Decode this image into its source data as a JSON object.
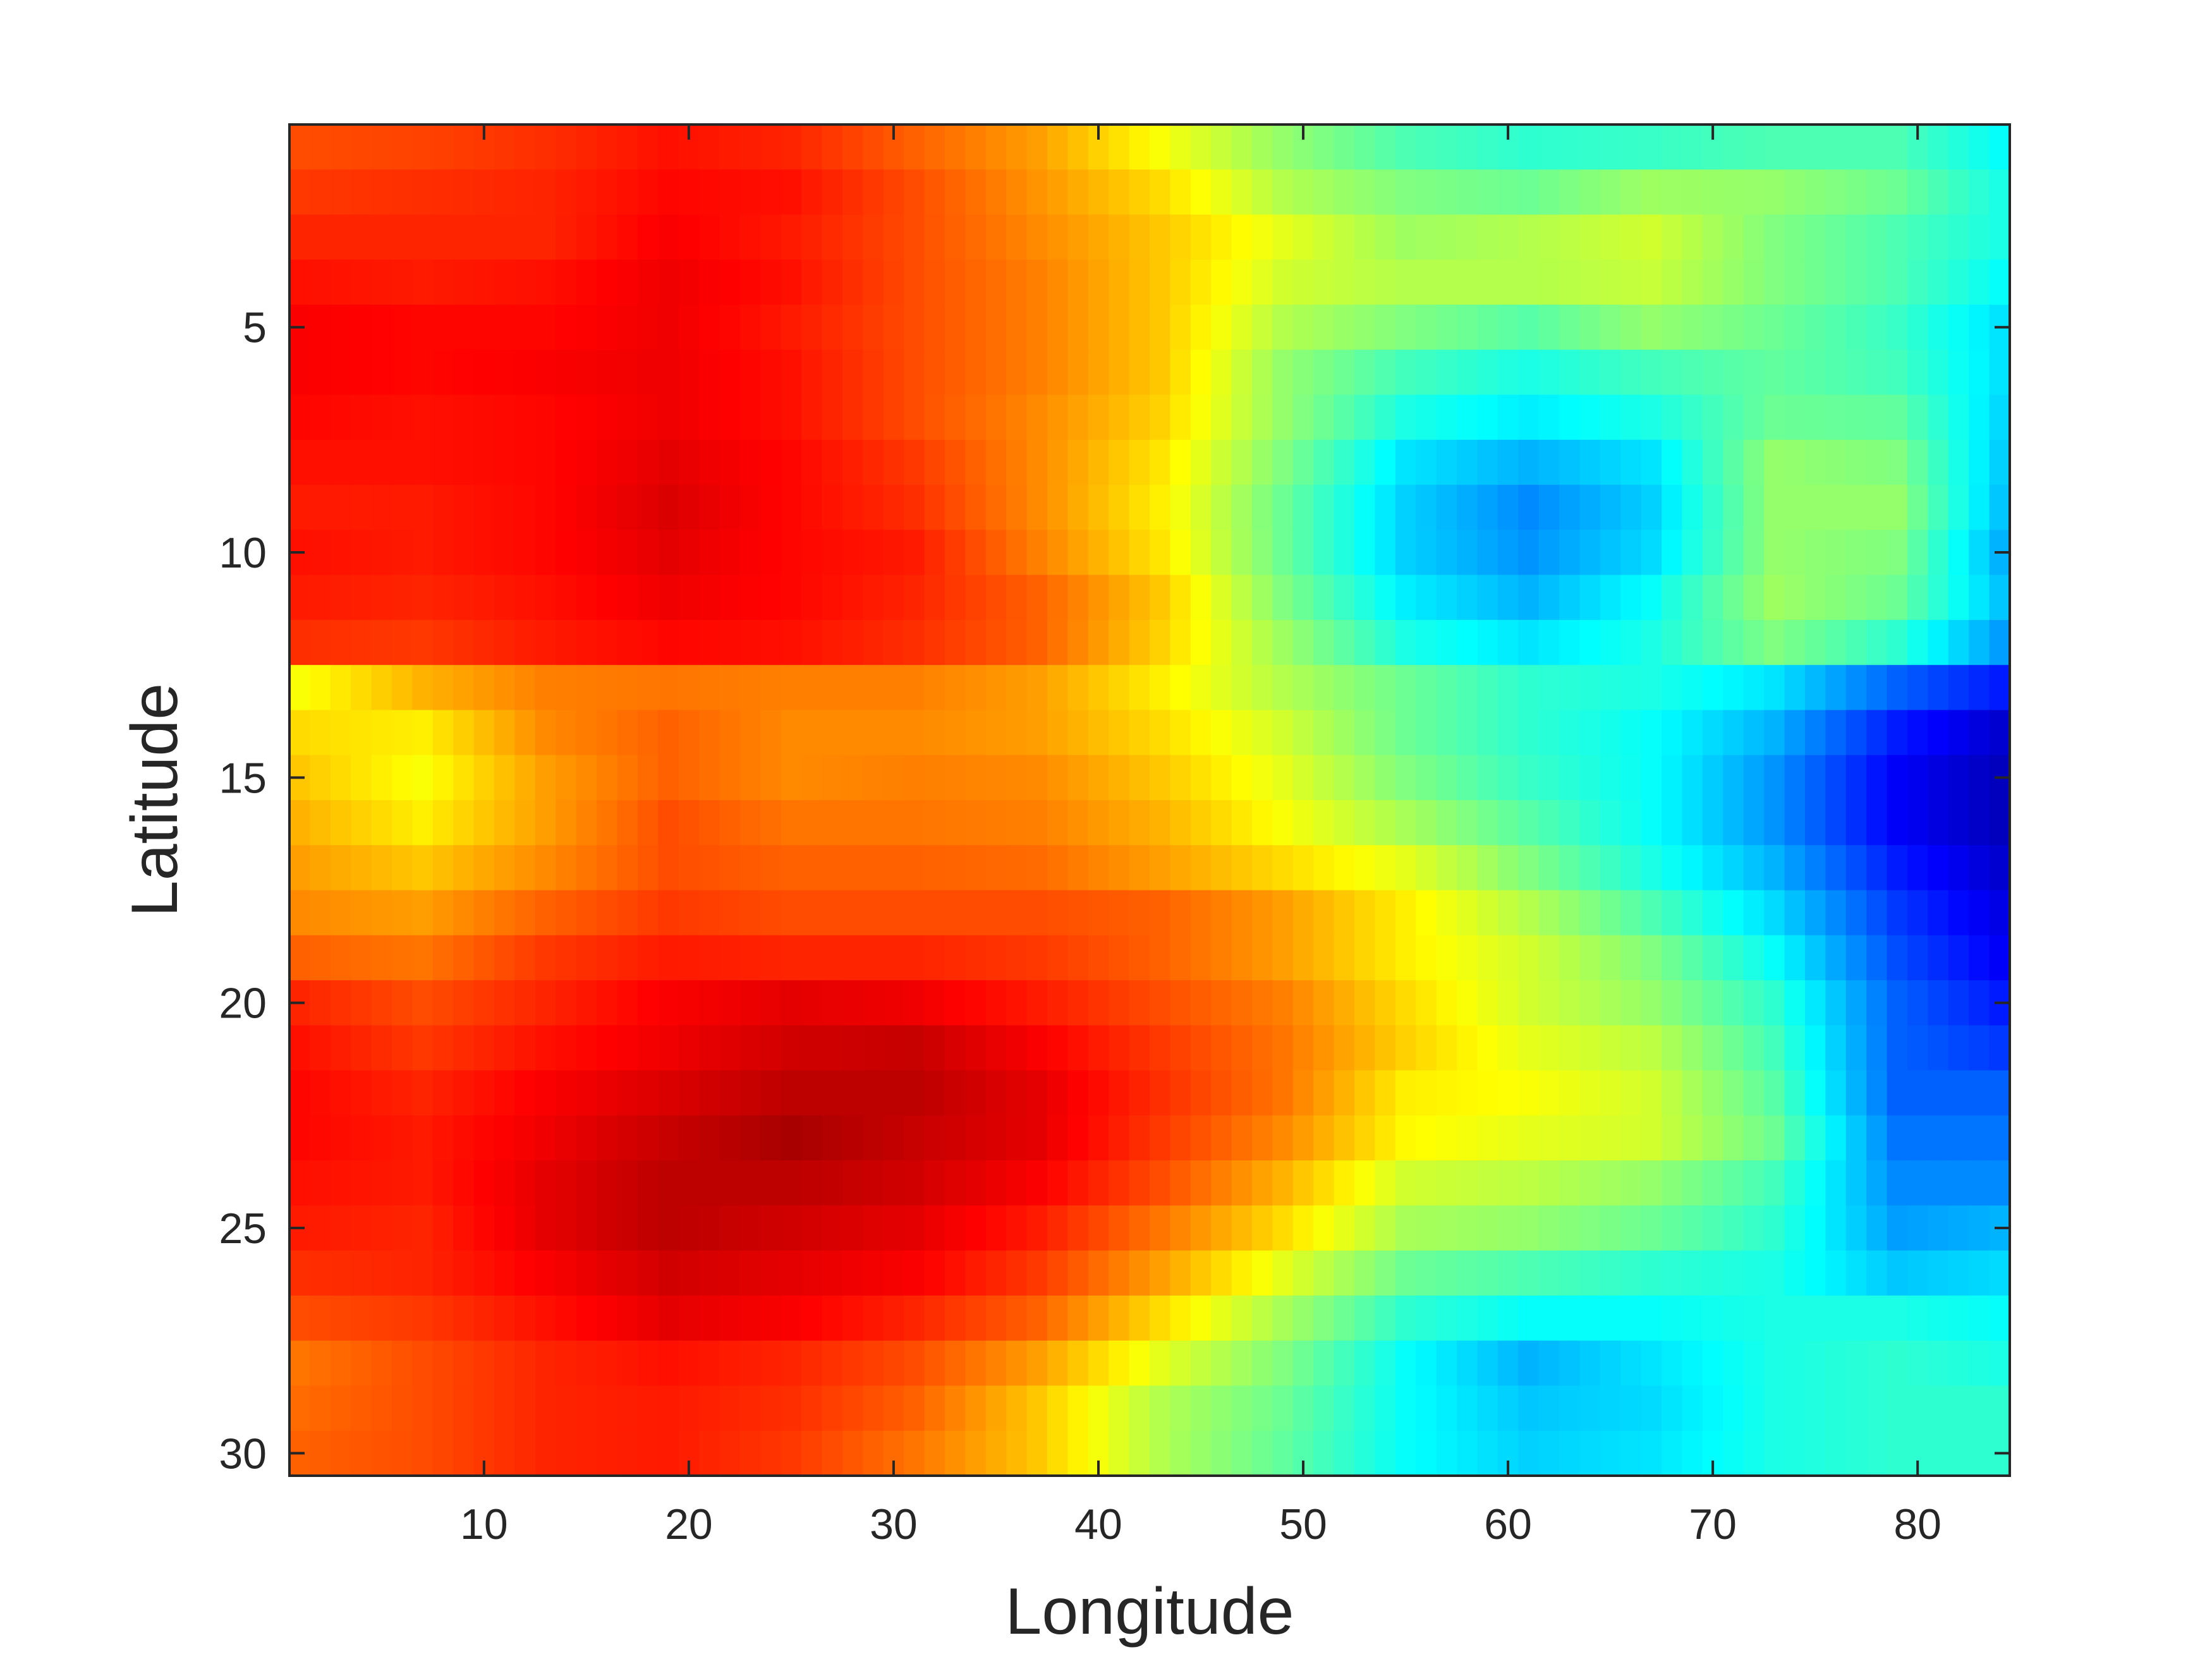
{
  "chart_data": {
    "type": "heatmap",
    "colormap": "jet",
    "xlabel": "Longitude",
    "ylabel": "Latitude",
    "xlim": [
      0.5,
      84.5
    ],
    "ylim": [
      0.5,
      30.5
    ],
    "y_direction": "reversed",
    "grid": false,
    "colorbar": false,
    "xticks": [
      10,
      20,
      30,
      40,
      50,
      60,
      70,
      80
    ],
    "yticks": [
      5,
      10,
      15,
      20,
      25,
      30
    ],
    "xtick_labels": [
      "10",
      "20",
      "30",
      "40",
      "50",
      "60",
      "70",
      "80"
    ],
    "ytick_labels": [
      "5",
      "10",
      "15",
      "20",
      "25",
      "30"
    ],
    "n_cols": 84,
    "n_rows": 30,
    "cols_per_knot": 6,
    "value_range": [
      0,
      1
    ],
    "knot_longitudes": [
      1,
      7,
      13,
      19,
      25,
      31,
      37,
      43,
      49,
      55,
      61,
      67,
      73,
      79,
      84
    ],
    "row_knots": [
      [
        0.8,
        0.81,
        0.83,
        0.86,
        0.84,
        0.78,
        0.72,
        0.62,
        0.52,
        0.45,
        0.42,
        0.43,
        0.45,
        0.45,
        0.38
      ],
      [
        0.82,
        0.83,
        0.84,
        0.87,
        0.86,
        0.8,
        0.73,
        0.66,
        0.55,
        0.5,
        0.48,
        0.53,
        0.52,
        0.48,
        0.4
      ],
      [
        0.84,
        0.84,
        0.84,
        0.88,
        0.85,
        0.8,
        0.74,
        0.68,
        0.6,
        0.53,
        0.55,
        0.58,
        0.5,
        0.45,
        0.4
      ],
      [
        0.86,
        0.85,
        0.86,
        0.89,
        0.86,
        0.8,
        0.75,
        0.68,
        0.58,
        0.55,
        0.55,
        0.57,
        0.5,
        0.45,
        0.38
      ],
      [
        0.88,
        0.87,
        0.87,
        0.89,
        0.85,
        0.8,
        0.75,
        0.68,
        0.55,
        0.5,
        0.46,
        0.52,
        0.48,
        0.43,
        0.35
      ],
      [
        0.88,
        0.87,
        0.88,
        0.89,
        0.86,
        0.8,
        0.75,
        0.68,
        0.52,
        0.44,
        0.4,
        0.44,
        0.47,
        0.44,
        0.35
      ],
      [
        0.87,
        0.86,
        0.87,
        0.89,
        0.86,
        0.8,
        0.74,
        0.67,
        0.52,
        0.4,
        0.36,
        0.4,
        0.48,
        0.47,
        0.34
      ],
      [
        0.86,
        0.86,
        0.87,
        0.9,
        0.87,
        0.82,
        0.74,
        0.65,
        0.5,
        0.35,
        0.3,
        0.35,
        0.52,
        0.5,
        0.33
      ],
      [
        0.85,
        0.85,
        0.87,
        0.91,
        0.87,
        0.83,
        0.74,
        0.64,
        0.48,
        0.33,
        0.26,
        0.33,
        0.52,
        0.52,
        0.32
      ],
      [
        0.86,
        0.85,
        0.87,
        0.9,
        0.87,
        0.85,
        0.75,
        0.65,
        0.48,
        0.33,
        0.27,
        0.34,
        0.52,
        0.5,
        0.3
      ],
      [
        0.85,
        0.84,
        0.86,
        0.89,
        0.87,
        0.84,
        0.78,
        0.68,
        0.5,
        0.36,
        0.3,
        0.38,
        0.53,
        0.48,
        0.32
      ],
      [
        0.83,
        0.82,
        0.85,
        0.87,
        0.86,
        0.83,
        0.78,
        0.67,
        0.53,
        0.4,
        0.35,
        0.4,
        0.5,
        0.42,
        0.28
      ],
      [
        0.62,
        0.7,
        0.75,
        0.76,
        0.75,
        0.75,
        0.72,
        0.64,
        0.55,
        0.48,
        0.42,
        0.4,
        0.35,
        0.22,
        0.15
      ],
      [
        0.66,
        0.64,
        0.74,
        0.78,
        0.74,
        0.74,
        0.72,
        0.66,
        0.58,
        0.48,
        0.42,
        0.38,
        0.3,
        0.15,
        0.08
      ],
      [
        0.68,
        0.62,
        0.72,
        0.78,
        0.74,
        0.75,
        0.74,
        0.68,
        0.6,
        0.5,
        0.43,
        0.38,
        0.27,
        0.12,
        0.06
      ],
      [
        0.7,
        0.64,
        0.72,
        0.8,
        0.76,
        0.76,
        0.75,
        0.7,
        0.62,
        0.54,
        0.46,
        0.38,
        0.27,
        0.12,
        0.06
      ],
      [
        0.72,
        0.68,
        0.74,
        0.8,
        0.78,
        0.78,
        0.77,
        0.72,
        0.66,
        0.6,
        0.5,
        0.4,
        0.3,
        0.15,
        0.08
      ],
      [
        0.74,
        0.72,
        0.78,
        0.82,
        0.8,
        0.8,
        0.8,
        0.78,
        0.72,
        0.64,
        0.55,
        0.45,
        0.34,
        0.18,
        0.1
      ],
      [
        0.78,
        0.76,
        0.82,
        0.85,
        0.84,
        0.84,
        0.82,
        0.78,
        0.72,
        0.64,
        0.58,
        0.5,
        0.38,
        0.2,
        0.12
      ],
      [
        0.84,
        0.8,
        0.84,
        0.88,
        0.9,
        0.89,
        0.85,
        0.8,
        0.75,
        0.66,
        0.58,
        0.52,
        0.42,
        0.22,
        0.15
      ],
      [
        0.86,
        0.82,
        0.86,
        0.89,
        0.92,
        0.93,
        0.88,
        0.82,
        0.76,
        0.67,
        0.6,
        0.56,
        0.44,
        0.22,
        0.18
      ],
      [
        0.87,
        0.84,
        0.88,
        0.91,
        0.94,
        0.94,
        0.9,
        0.83,
        0.76,
        0.64,
        0.62,
        0.58,
        0.46,
        0.22,
        0.22
      ],
      [
        0.87,
        0.85,
        0.89,
        0.93,
        0.96,
        0.93,
        0.9,
        0.82,
        0.74,
        0.63,
        0.6,
        0.58,
        0.48,
        0.24,
        0.24
      ],
      [
        0.86,
        0.85,
        0.9,
        0.94,
        0.94,
        0.92,
        0.88,
        0.8,
        0.7,
        0.58,
        0.56,
        0.52,
        0.44,
        0.26,
        0.26
      ],
      [
        0.85,
        0.84,
        0.9,
        0.94,
        0.92,
        0.9,
        0.85,
        0.76,
        0.66,
        0.54,
        0.52,
        0.48,
        0.42,
        0.28,
        0.3
      ],
      [
        0.83,
        0.84,
        0.88,
        0.92,
        0.9,
        0.88,
        0.82,
        0.72,
        0.6,
        0.48,
        0.45,
        0.42,
        0.4,
        0.32,
        0.34
      ],
      [
        0.8,
        0.82,
        0.86,
        0.9,
        0.88,
        0.84,
        0.78,
        0.66,
        0.54,
        0.42,
        0.38,
        0.38,
        0.4,
        0.4,
        0.38
      ],
      [
        0.76,
        0.8,
        0.84,
        0.86,
        0.84,
        0.8,
        0.72,
        0.6,
        0.5,
        0.38,
        0.3,
        0.35,
        0.4,
        0.42,
        0.4
      ],
      [
        0.77,
        0.8,
        0.84,
        0.85,
        0.83,
        0.78,
        0.68,
        0.55,
        0.48,
        0.38,
        0.32,
        0.34,
        0.4,
        0.42,
        0.42
      ],
      [
        0.78,
        0.8,
        0.84,
        0.85,
        0.82,
        0.76,
        0.68,
        0.55,
        0.47,
        0.38,
        0.33,
        0.35,
        0.4,
        0.42,
        0.42
      ]
    ]
  }
}
